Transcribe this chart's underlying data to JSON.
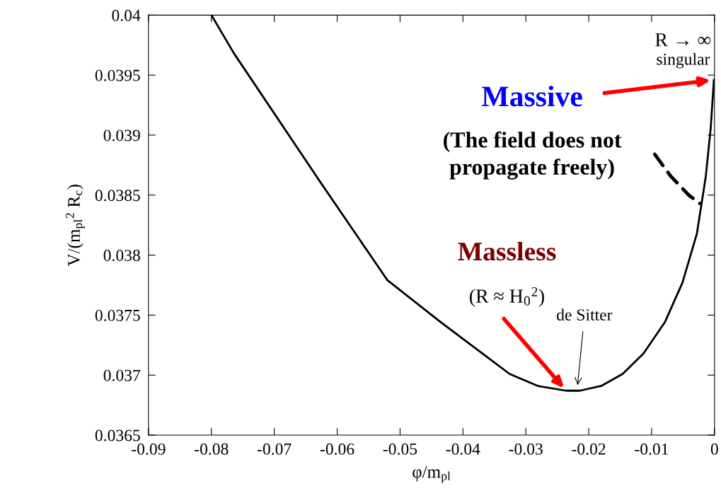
{
  "chart_data": {
    "type": "line",
    "xlabel": "φ/m$_{pl}$",
    "ylabel": "V/(m$_{pl}$$^{2}$ R$_{c}$)",
    "xlim": [
      -0.09,
      0
    ],
    "ylim": [
      0.0365,
      0.04
    ],
    "xticks": [
      -0.09,
      -0.08,
      -0.07,
      -0.06,
      -0.05,
      -0.04,
      -0.03,
      -0.02,
      -0.01,
      0
    ],
    "yticks": [
      0.0365,
      0.037,
      0.0375,
      0.038,
      0.0385,
      0.039,
      0.0395,
      0.04
    ],
    "grid": false,
    "legend": false,
    "marker": "none",
    "series": [
      {
        "color": "#000000",
        "line_style": "solid",
        "x": [
          -0.08,
          -0.0764,
          -0.0627,
          -0.052,
          -0.0435,
          -0.0374,
          -0.0326,
          -0.0281,
          -0.0236,
          -0.0214,
          -0.018,
          -0.0146,
          -0.0113,
          -0.0079,
          -0.0051,
          -0.0028,
          -0.0014,
          -0.0006,
          -0.0001
        ],
        "values": [
          0.04,
          0.03968,
          0.03861,
          0.03779,
          0.03744,
          0.0372,
          0.03701,
          0.03691,
          0.03687,
          0.03687,
          0.03691,
          0.03701,
          0.03718,
          0.03744,
          0.03777,
          0.03818,
          0.03865,
          0.03906,
          0.03946
        ]
      },
      {
        "color": "#000000",
        "line_style": "dashed",
        "x": [
          -0.0095,
          -0.007,
          -0.0041,
          -0.0023
        ],
        "values": [
          0.03884,
          0.03866,
          0.0385,
          0.03843
        ]
      }
    ],
    "annotations": [
      "Massive",
      "(The field does not\npropagate freely)",
      "Massless",
      "(R ≈ H$_{0}$$^{2}$)",
      {
        "text": "de Sitter",
        "x": -0.0218,
        "y": 0.0369
      },
      "R → ∞",
      "singular"
    ]
  }
}
